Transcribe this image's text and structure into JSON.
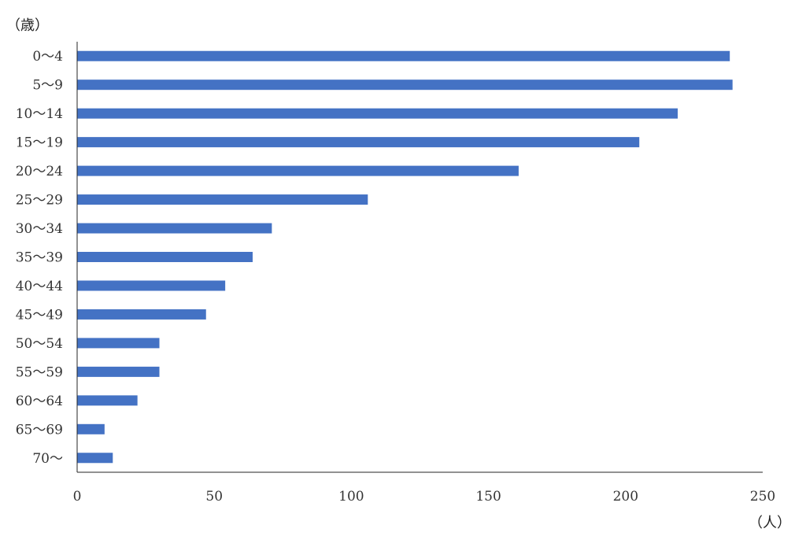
{
  "chart_data": {
    "type": "bar",
    "orientation": "horizontal",
    "categories": [
      "0～4",
      "5～9",
      "10～14",
      "15～19",
      "20～24",
      "25～29",
      "30～34",
      "35～39",
      "40～44",
      "45～49",
      "50～54",
      "55～59",
      "60～64",
      "65～69",
      "70～"
    ],
    "values": [
      238,
      239,
      219,
      205,
      161,
      106,
      71,
      64,
      54,
      47,
      30,
      30,
      22,
      10,
      13
    ],
    "x_ticks": [
      "0",
      "50",
      "100",
      "150",
      "200",
      "250"
    ],
    "xlim": [
      0,
      250
    ],
    "xlabel": "（人）",
    "ylabel": "（歳）",
    "grid": false,
    "legend": "none",
    "bar_color": "#4472c4"
  }
}
